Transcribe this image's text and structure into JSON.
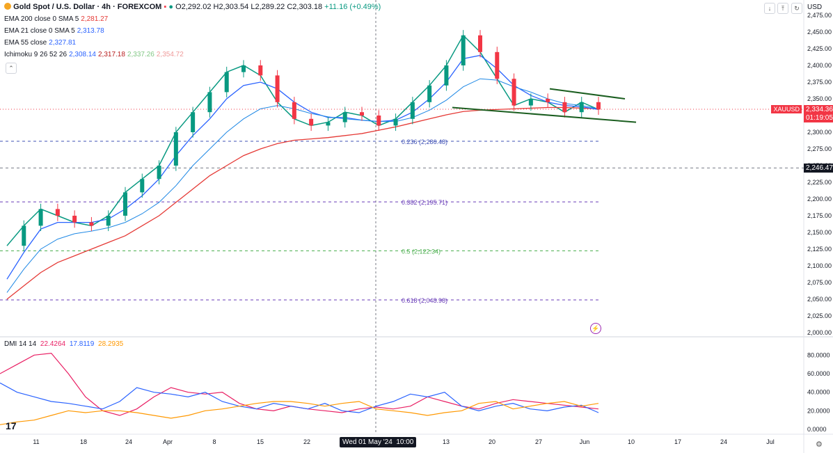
{
  "header": {
    "symbol": "Gold Spot / U.S. Dollar · 4h · FOREXCOM",
    "o": "O2,292.02",
    "h": "H2,303.54",
    "l": "L2,289.22",
    "c": "C2,303.18",
    "change": "+11.16 (+0.49%)",
    "currency": "USD"
  },
  "legends": [
    {
      "label": "EMA 200 close 0 SMA 5",
      "value": "2,281.27",
      "color": "#e53935"
    },
    {
      "label": "EMA 21 close 0 SMA 5",
      "value": "2,313.78",
      "color": "#2962ff"
    },
    {
      "label": "EMA 55 close",
      "value": "2,327.81",
      "color": "#2962ff"
    },
    {
      "label": "Ichimoku 9 26 52 26",
      "values": [
        "2,308.14",
        "2,317.18",
        "2,337.26",
        "2,354.72"
      ],
      "colors": [
        "#2962ff",
        "#b71c1c",
        "#81c784",
        "#ef9a9a"
      ]
    }
  ],
  "dmi_legend": {
    "label": "DMI 14 14",
    "values": [
      "22.4264",
      "17.8119",
      "28.2935"
    ],
    "colors": [
      "#e91e63",
      "#2962ff",
      "#ff9800"
    ]
  },
  "tags": {
    "xau_label": "XAUUSD",
    "xau_price": "2,334.36",
    "xau_time": "01:19:05",
    "level_price": "2,246.47",
    "crosshair_date": "Wed 01 May '24",
    "crosshair_time": "10:00"
  },
  "chart_data": [
    {
      "type": "line",
      "title": "Gold Spot / U.S. Dollar · 4h · FOREXCOM",
      "ylim": [
        2000,
        2475
      ],
      "y_ticks": [
        "2,475.00",
        "2,450.00",
        "2,425.00",
        "2,400.00",
        "2,375.00",
        "2,350.00",
        "2,325.00",
        "2,300.00",
        "2,275.00",
        "2,250.00",
        "2,225.00",
        "2,200.00",
        "2,175.00",
        "2,150.00",
        "2,125.00",
        "2,100.00",
        "2,075.00",
        "2,050.00",
        "2,025.00",
        "2,000.00"
      ],
      "x_ticks": [
        "11",
        "18",
        "24",
        "Apr",
        "8",
        "15",
        "22",
        "29",
        "13",
        "20",
        "27",
        "Jun",
        "10",
        "17",
        "24",
        "Jul"
      ],
      "fib_levels": [
        {
          "label": "0.236 (2,286.48)",
          "value": 2286.48,
          "color": "#3f51b5"
        },
        {
          "label": "0.382 (2,195.71)",
          "value": 2195.71,
          "color": "#673ab7"
        },
        {
          "label": "0.5 (2,122.34)",
          "value": 2122.34,
          "color": "#4caf50"
        },
        {
          "label": "0.618 (2,048.98)",
          "value": 2048.98,
          "color": "#673ab7"
        }
      ],
      "horizontal_level": 2246.47,
      "series": [
        {
          "name": "Price",
          "values": [
            2130,
            2160,
            2185,
            2175,
            2165,
            2160,
            2175,
            2210,
            2230,
            2250,
            2300,
            2330,
            2360,
            2390,
            2400,
            2385,
            2345,
            2320,
            2310,
            2315,
            2330,
            2325,
            2310,
            2320,
            2345,
            2370,
            2400,
            2445,
            2420,
            2380,
            2340,
            2350,
            2345,
            2330,
            2345,
            2334
          ]
        },
        {
          "name": "EMA 200 close 0 SMA 5",
          "values": [
            2050,
            2070,
            2090,
            2105,
            2115,
            2125,
            2135,
            2145,
            2160,
            2175,
            2195,
            2215,
            2235,
            2250,
            2265,
            2275,
            2283,
            2288,
            2290,
            2292,
            2295,
            2298,
            2303,
            2308,
            2314,
            2320,
            2326,
            2331,
            2333,
            2334,
            2335,
            2336,
            2337,
            2337,
            2336,
            2335
          ]
        },
        {
          "name": "EMA 21 close 0 SMA 5",
          "values": [
            2080,
            2120,
            2155,
            2165,
            2165,
            2165,
            2170,
            2185,
            2205,
            2230,
            2265,
            2295,
            2320,
            2350,
            2370,
            2375,
            2365,
            2345,
            2330,
            2322,
            2322,
            2318,
            2316,
            2318,
            2330,
            2350,
            2375,
            2410,
            2415,
            2395,
            2370,
            2355,
            2345,
            2340,
            2338,
            2334
          ]
        },
        {
          "name": "EMA 55 close",
          "values": [
            2060,
            2095,
            2125,
            2140,
            2148,
            2152,
            2157,
            2165,
            2178,
            2195,
            2220,
            2250,
            2275,
            2300,
            2320,
            2335,
            2340,
            2335,
            2328,
            2323,
            2320,
            2318,
            2316,
            2316,
            2322,
            2333,
            2348,
            2368,
            2380,
            2378,
            2368,
            2360,
            2350,
            2343,
            2340,
            2335
          ]
        }
      ],
      "annotations": [
        "Symmetrical triangle: upper trendline ~2,365→2,350",
        "lower trendline ~2,337→2,315"
      ]
    },
    {
      "type": "line",
      "title": "DMI 14 14",
      "ylim": [
        0,
        90
      ],
      "y_ticks": [
        "80.0000",
        "60.0000",
        "40.0000",
        "20.0000",
        "0.0000"
      ],
      "series": [
        {
          "name": "ADX",
          "values": [
            60,
            70,
            80,
            82,
            60,
            35,
            20,
            15,
            22,
            35,
            45,
            40,
            38,
            40,
            28,
            22,
            20,
            25,
            22,
            20,
            18,
            22,
            24,
            22,
            25,
            35,
            30,
            25,
            22,
            28,
            32,
            30,
            28,
            26,
            24,
            22
          ]
        },
        {
          "name": "+DI",
          "values": [
            50,
            40,
            35,
            30,
            28,
            25,
            22,
            30,
            45,
            40,
            38,
            35,
            40,
            30,
            25,
            22,
            28,
            25,
            22,
            28,
            20,
            18,
            25,
            30,
            38,
            35,
            40,
            25,
            20,
            25,
            28,
            22,
            20,
            24,
            26,
            18
          ]
        },
        {
          "name": "-DI",
          "values": [
            5,
            8,
            10,
            15,
            20,
            18,
            20,
            20,
            18,
            15,
            12,
            15,
            20,
            22,
            25,
            28,
            30,
            30,
            28,
            25,
            28,
            30,
            22,
            20,
            18,
            15,
            18,
            20,
            28,
            30,
            22,
            25,
            28,
            30,
            25,
            28
          ]
        }
      ]
    }
  ]
}
